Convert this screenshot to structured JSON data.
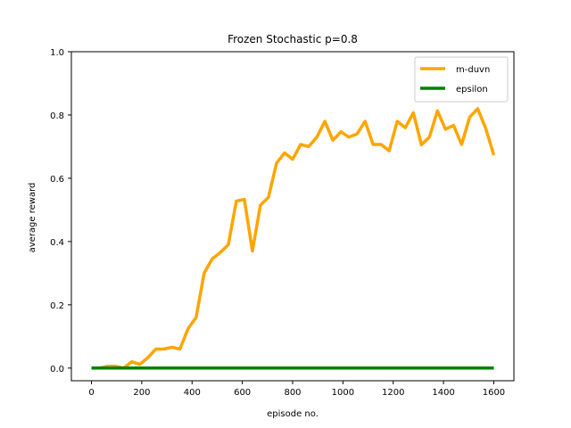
{
  "chart_data": {
    "type": "line",
    "title": "Frozen Stochastic p=0.8",
    "xlabel": "episode no.",
    "ylabel": "average reward",
    "xlim": [
      -80,
      1680
    ],
    "ylim": [
      -0.04,
      1.0
    ],
    "x_ticks": [
      0,
      200,
      400,
      600,
      800,
      1000,
      1200,
      1400,
      1600
    ],
    "x_tick_labels": [
      "0",
      "200",
      "400",
      "600",
      "800",
      "1000",
      "1200",
      "1400",
      "1600"
    ],
    "y_ticks": [
      0.0,
      0.2,
      0.4,
      0.6,
      0.8,
      1.0
    ],
    "y_tick_labels": [
      "0.0",
      "0.2",
      "0.4",
      "0.6",
      "0.8",
      "1.0"
    ],
    "grid": false,
    "legend_position": "top-right",
    "series": [
      {
        "name": "m-duvn",
        "color": "#ffa500",
        "x": [
          0,
          32,
          64,
          96,
          128,
          160,
          192,
          224,
          256,
          288,
          320,
          352,
          384,
          416,
          448,
          480,
          512,
          544,
          576,
          608,
          640,
          672,
          704,
          736,
          768,
          800,
          832,
          864,
          896,
          928,
          960,
          992,
          1024,
          1056,
          1088,
          1120,
          1152,
          1184,
          1216,
          1248,
          1280,
          1312,
          1344,
          1376,
          1408,
          1440,
          1472,
          1504,
          1536,
          1568,
          1600
        ],
        "y": [
          0.0,
          0.0,
          0.006,
          0.006,
          0.0,
          0.02,
          0.012,
          0.033,
          0.06,
          0.06,
          0.066,
          0.06,
          0.125,
          0.16,
          0.3,
          0.345,
          0.365,
          0.39,
          0.528,
          0.533,
          0.37,
          0.515,
          0.54,
          0.648,
          0.68,
          0.66,
          0.707,
          0.7,
          0.73,
          0.78,
          0.72,
          0.747,
          0.73,
          0.74,
          0.78,
          0.707,
          0.707,
          0.687,
          0.78,
          0.76,
          0.807,
          0.706,
          0.73,
          0.813,
          0.755,
          0.767,
          0.707,
          0.793,
          0.82,
          0.758,
          0.673
        ]
      },
      {
        "name": "epsilon",
        "color": "#008000",
        "x": [
          0,
          1600
        ],
        "y": [
          0.0,
          0.0
        ]
      }
    ]
  }
}
